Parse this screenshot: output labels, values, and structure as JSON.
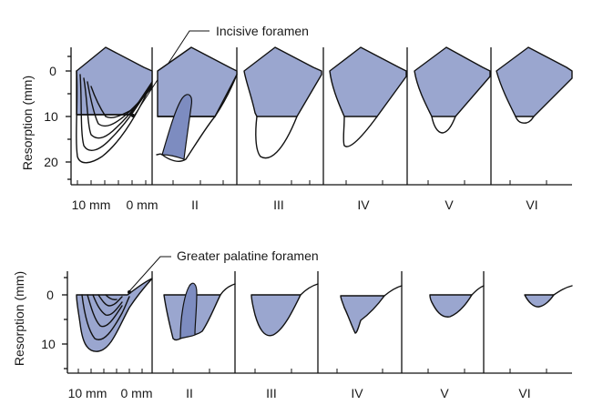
{
  "top_panel": {
    "y_axis_label": "Resorption (mm)",
    "y_ticks": [
      "0",
      "10",
      "20"
    ],
    "callout": "Incisive foramen",
    "scale_labels": [
      "10 mm",
      "0 mm"
    ],
    "stage_labels": [
      "II",
      "III",
      "IV",
      "V",
      "VI"
    ]
  },
  "bottom_panel": {
    "y_axis_label": "Resorption (mm)",
    "y_ticks": [
      "0",
      "10"
    ],
    "callout": "Greater palatine foramen",
    "scale_labels": [
      "10 mm",
      "0 mm"
    ],
    "stage_labels": [
      "II",
      "III",
      "IV",
      "V",
      "VI"
    ]
  },
  "colors": {
    "bone_fill": "#9aa6cf",
    "highlight": "#7d8cc0",
    "ink": "#111111"
  }
}
